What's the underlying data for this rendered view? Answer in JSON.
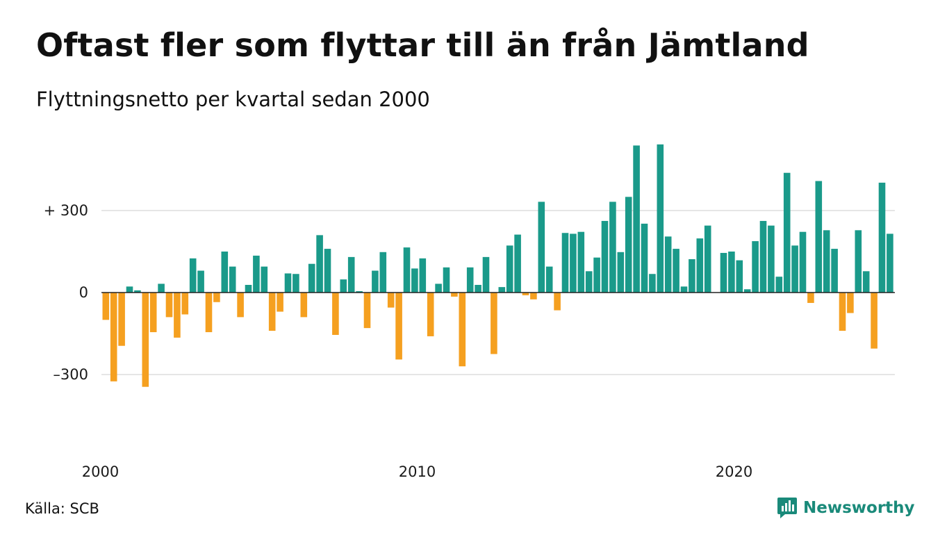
{
  "title": "Oftast fler som flyttar till än från Jämtland",
  "subtitle": "Flyttningsnetto per kvartal sedan 2000",
  "source": "Källa: SCB",
  "brand": {
    "name": "Newsworthy",
    "icon": "chart-bubble-icon"
  },
  "colors": {
    "positive": "#1a9a8a",
    "negative": "#f5a020",
    "axis": "#222222",
    "grid": "#e6e6e6"
  },
  "chart_data": {
    "type": "bar",
    "title": "Oftast fler som flyttar till än från Jämtland",
    "subtitle": "Flyttningsnetto per kvartal sedan 2000",
    "x_start": "2000 Q1",
    "ylim": [
      -460,
      560
    ],
    "yticks": [
      {
        "value": 300,
        "label": "+ 300"
      },
      {
        "value": 0,
        "label": "0"
      },
      {
        "value": -300,
        "label": "–300"
      }
    ],
    "xticks": [
      {
        "value": "2000 Q1",
        "label": "2000"
      },
      {
        "value": "2010 Q1",
        "label": "2010"
      },
      {
        "value": "2020 Q1",
        "label": "2020"
      }
    ],
    "grid": true,
    "legend": "none",
    "values": [
      -100,
      -325,
      -195,
      22,
      8,
      -345,
      -145,
      32,
      -90,
      -165,
      -80,
      125,
      80,
      -145,
      -35,
      150,
      95,
      -90,
      28,
      135,
      95,
      -140,
      -70,
      70,
      68,
      -90,
      105,
      210,
      160,
      -155,
      48,
      130,
      5,
      -130,
      80,
      148,
      -55,
      -245,
      165,
      88,
      125,
      -160,
      32,
      92,
      -15,
      -270,
      92,
      28,
      130,
      -225,
      20,
      172,
      212,
      -10,
      -25,
      332,
      95,
      -65,
      218,
      215,
      222,
      78,
      128,
      262,
      332,
      148,
      350,
      538,
      252,
      68,
      542,
      205,
      160,
      22,
      122,
      198,
      245,
      0,
      145,
      150,
      118,
      12,
      188,
      262,
      245,
      58,
      438,
      172,
      222,
      -38,
      408,
      228,
      160,
      -140,
      -75,
      228,
      78,
      -205,
      402,
      215
    ]
  }
}
